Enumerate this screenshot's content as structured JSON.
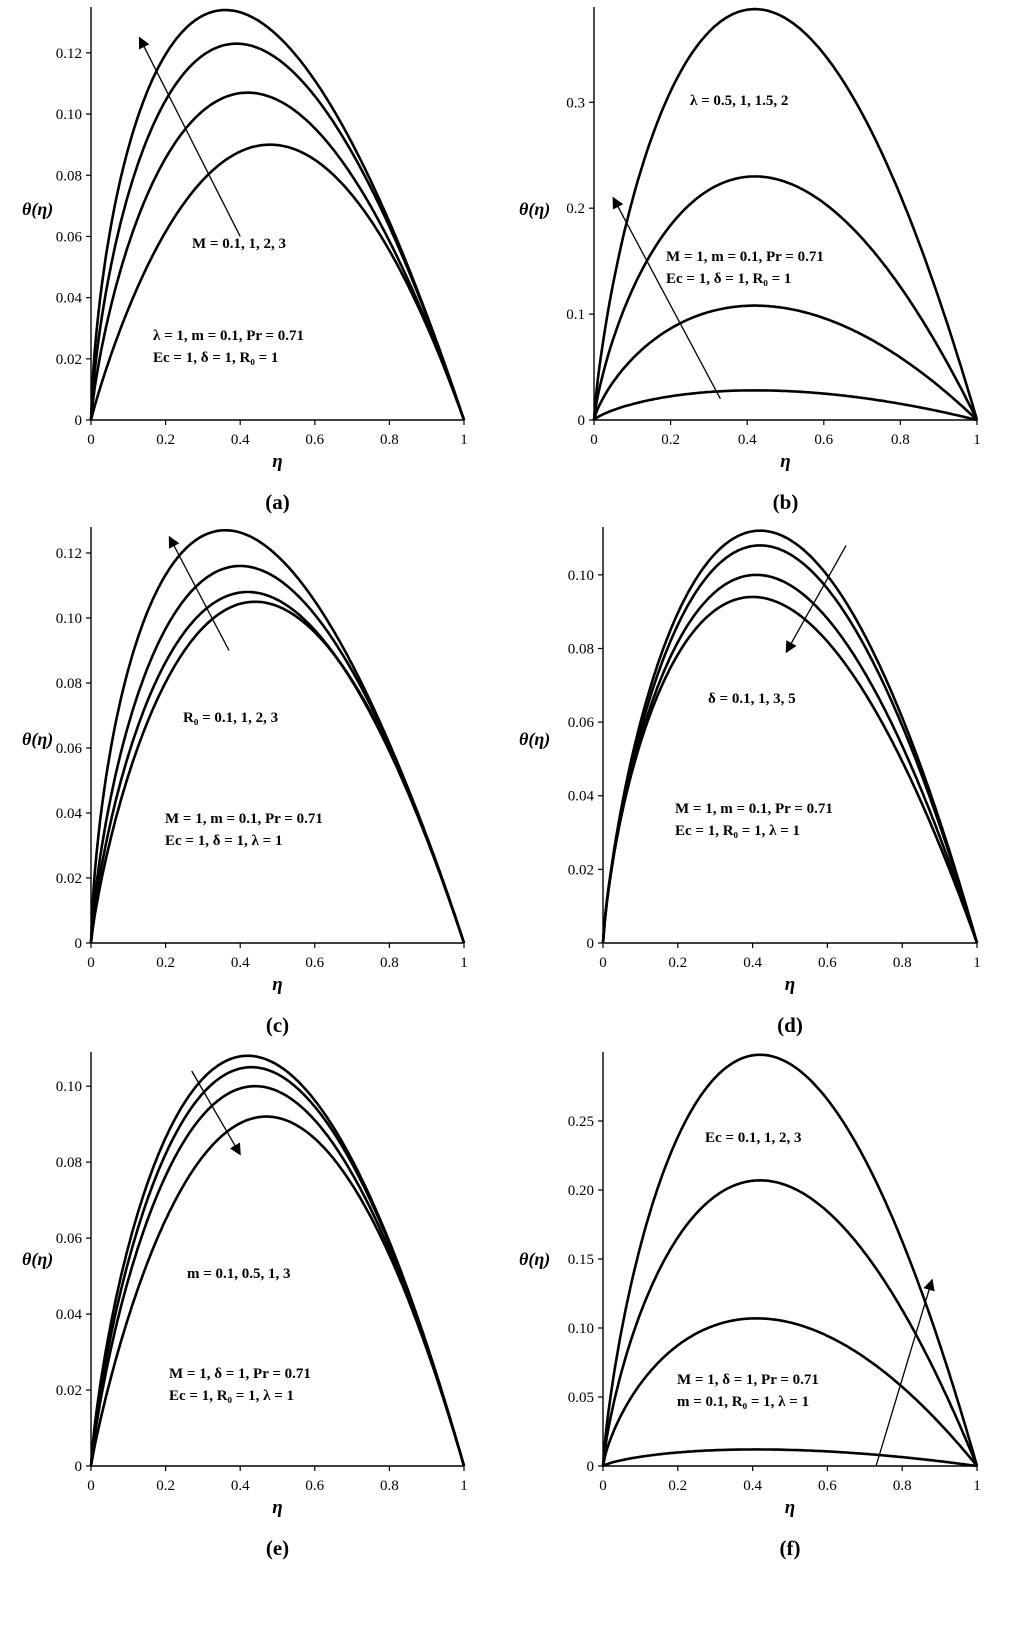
{
  "chart_data": [
    {
      "type": "line",
      "panel_label": "(a)",
      "xlabel": "η",
      "ylabel": "θ(η)",
      "xlim": [
        0,
        1
      ],
      "ylim": [
        0,
        0.135
      ],
      "xticks": [
        "0",
        "0.2",
        "0.4",
        "0.6",
        "0.8",
        "1"
      ],
      "yticks": [
        "0",
        "0.02",
        "0.04",
        "0.06",
        "0.08",
        "0.10",
        "0.12"
      ],
      "ytick_values": [
        0,
        0.02,
        0.04,
        0.06,
        0.08,
        0.1,
        0.12
      ],
      "annotations": [
        "M = 0.1, 1, 2, 3",
        "λ = 1, m = 0.1, Pr = 0.71",
        "Ec = 1, δ = 1, R₀ = 1"
      ],
      "arrow": {
        "from": [
          0.4,
          0.06
        ],
        "to": [
          0.13,
          0.125
        ]
      },
      "series": [
        {
          "peak_x": 0.48,
          "peak_y": 0.09
        },
        {
          "peak_x": 0.42,
          "peak_y": 0.107
        },
        {
          "peak_x": 0.39,
          "peak_y": 0.123
        },
        {
          "peak_x": 0.36,
          "peak_y": 0.134
        }
      ]
    },
    {
      "type": "line",
      "panel_label": "(b)",
      "xlabel": "η",
      "ylabel": "θ(η)",
      "xlim": [
        0,
        1
      ],
      "ylim": [
        0,
        0.39
      ],
      "xticks": [
        "0",
        "0.2",
        "0.4",
        "0.6",
        "0.8",
        "1"
      ],
      "yticks": [
        "0",
        "0.1",
        "0.2",
        "0.3"
      ],
      "ytick_values": [
        0,
        0.1,
        0.2,
        0.3
      ],
      "annotations": [
        "λ = 0.5, 1, 1.5, 2",
        "M = 1, m = 0.1, Pr = 0.71",
        "Ec = 1, δ = 1, R₀ = 1"
      ],
      "arrow": {
        "from": [
          0.33,
          0.02
        ],
        "to": [
          0.05,
          0.21
        ]
      },
      "series": [
        {
          "peak_x": 0.42,
          "peak_y": 0.028
        },
        {
          "peak_x": 0.42,
          "peak_y": 0.108
        },
        {
          "peak_x": 0.42,
          "peak_y": 0.23
        },
        {
          "peak_x": 0.42,
          "peak_y": 0.388
        }
      ]
    },
    {
      "type": "line",
      "panel_label": "(c)",
      "xlabel": "η",
      "ylabel": "θ(η)",
      "xlim": [
        0,
        1
      ],
      "ylim": [
        0,
        0.128
      ],
      "xticks": [
        "0",
        "0.2",
        "0.4",
        "0.6",
        "0.8",
        "1"
      ],
      "yticks": [
        "0",
        "0.02",
        "0.04",
        "0.06",
        "0.08",
        "0.10",
        "0.12"
      ],
      "ytick_values": [
        0,
        0.02,
        0.04,
        0.06,
        0.08,
        0.1,
        0.12
      ],
      "annotations": [
        "R₀ = 0.1, 1, 2, 3",
        "M = 1, m = 0.1, Pr = 0.71",
        "Ec = 1, δ = 1, λ = 1"
      ],
      "arrow": {
        "from": [
          0.37,
          0.09
        ],
        "to": [
          0.21,
          0.125
        ]
      },
      "series": [
        {
          "peak_x": 0.44,
          "peak_y": 0.105
        },
        {
          "peak_x": 0.42,
          "peak_y": 0.108
        },
        {
          "peak_x": 0.4,
          "peak_y": 0.116
        },
        {
          "peak_x": 0.36,
          "peak_y": 0.127
        }
      ]
    },
    {
      "type": "line",
      "panel_label": "(d)",
      "xlabel": "η",
      "ylabel": "θ(η)",
      "xlim": [
        0,
        1
      ],
      "ylim": [
        0,
        0.113
      ],
      "xticks": [
        "0",
        "0.2",
        "0.4",
        "0.6",
        "0.8",
        "1"
      ],
      "yticks": [
        "0",
        "0.02",
        "0.04",
        "0.06",
        "0.08",
        "0.10"
      ],
      "ytick_values": [
        0,
        0.02,
        0.04,
        0.06,
        0.08,
        0.1
      ],
      "annotations": [
        "δ = 0.1, 1, 3, 5",
        "M = 1, m = 0.1, Pr = 0.71",
        "Ec = 1, R₀ = 1, λ = 1"
      ],
      "arrow": {
        "from": [
          0.65,
          0.108
        ],
        "to": [
          0.49,
          0.079
        ]
      },
      "series": [
        {
          "peak_x": 0.42,
          "peak_y": 0.112
        },
        {
          "peak_x": 0.42,
          "peak_y": 0.108
        },
        {
          "peak_x": 0.41,
          "peak_y": 0.1
        },
        {
          "peak_x": 0.4,
          "peak_y": 0.094
        }
      ]
    },
    {
      "type": "line",
      "panel_label": "(e)",
      "xlabel": "η",
      "ylabel": "θ(η)",
      "xlim": [
        0,
        1
      ],
      "ylim": [
        0,
        0.109
      ],
      "xticks": [
        "0",
        "0.2",
        "0.4",
        "0.6",
        "0.8",
        "1"
      ],
      "yticks": [
        "0",
        "0.02",
        "0.04",
        "0.06",
        "0.08",
        "0.10"
      ],
      "ytick_values": [
        0,
        0.02,
        0.04,
        0.06,
        0.08,
        0.1
      ],
      "annotations": [
        "m = 0.1, 0.5, 1, 3",
        "M = 1, δ = 1, Pr = 0.71",
        "Ec = 1, R₀ = 1, λ = 1"
      ],
      "arrow": {
        "from": [
          0.27,
          0.104
        ],
        "to": [
          0.4,
          0.082
        ]
      },
      "series": [
        {
          "peak_x": 0.42,
          "peak_y": 0.108
        },
        {
          "peak_x": 0.43,
          "peak_y": 0.105
        },
        {
          "peak_x": 0.44,
          "peak_y": 0.1
        },
        {
          "peak_x": 0.47,
          "peak_y": 0.092
        }
      ]
    },
    {
      "type": "line",
      "panel_label": "(f)",
      "xlabel": "η",
      "ylabel": "θ(η)",
      "xlim": [
        0,
        1
      ],
      "ylim": [
        0,
        0.3
      ],
      "xticks": [
        "0",
        "0.2",
        "0.4",
        "0.6",
        "0.8",
        "1"
      ],
      "yticks": [
        "0",
        "0.05",
        "0.10",
        "0.15",
        "0.20",
        "0.25"
      ],
      "ytick_values": [
        0,
        0.05,
        0.1,
        0.15,
        0.2,
        0.25
      ],
      "annotations": [
        "Ec = 0.1, 1, 2, 3",
        "M = 1, δ = 1, Pr = 0.71",
        "m = 0.1, R₀ = 1, λ = 1"
      ],
      "arrow": {
        "from": [
          0.73,
          0.0
        ],
        "to": [
          0.88,
          0.135
        ]
      },
      "series": [
        {
          "peak_x": 0.41,
          "peak_y": 0.012
        },
        {
          "peak_x": 0.41,
          "peak_y": 0.107
        },
        {
          "peak_x": 0.42,
          "peak_y": 0.207
        },
        {
          "peak_x": 0.42,
          "peak_y": 0.298
        }
      ]
    }
  ]
}
